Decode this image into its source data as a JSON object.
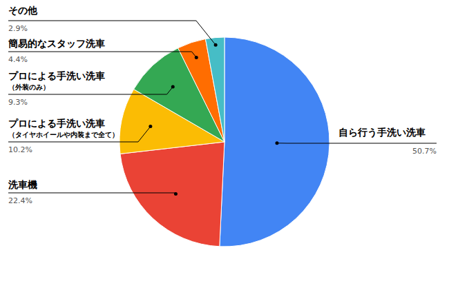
{
  "chart_data": {
    "type": "pie",
    "categories": [
      "自ら行う手洗い洗車",
      "洗車機",
      "プロによる手洗い洗車（タイヤホイールや内装まで全て）",
      "プロによる手洗い洗車（外装のみ）",
      "簡易的なスタッフ洗車",
      "その他"
    ],
    "values": [
      50.7,
      22.4,
      10.2,
      9.3,
      4.4,
      2.9
    ],
    "value_labels": [
      "50.7%",
      "22.4%",
      "10.2%",
      "9.3%",
      "4.4%",
      "2.9%"
    ],
    "colors": [
      "#4285f4",
      "#ea4335",
      "#fbbc04",
      "#34a853",
      "#ff6d01",
      "#46bdc6"
    ],
    "data_labels": true
  }
}
